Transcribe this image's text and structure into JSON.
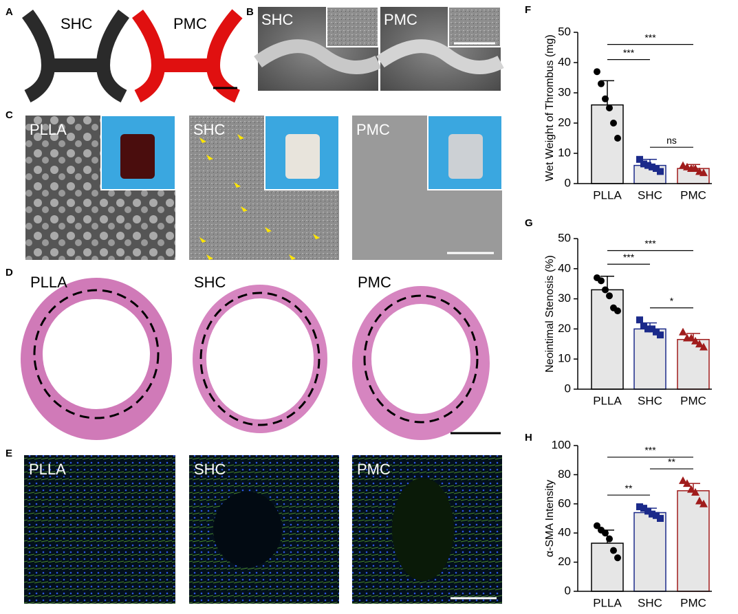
{
  "image_panels": [
    {
      "label": "A",
      "captions": [
        "SHC",
        "PMC"
      ]
    },
    {
      "label": "B",
      "captions": [
        "SHC",
        "PMC"
      ]
    },
    {
      "label": "C",
      "captions": [
        "PLLA",
        "SHC",
        "PMC"
      ]
    },
    {
      "label": "D",
      "captions": [
        "PLLA",
        "SHC",
        "PMC"
      ]
    },
    {
      "label": "E",
      "captions": [
        "PLLA",
        "SHC",
        "PMC"
      ]
    }
  ],
  "chart_data": [
    {
      "type": "bar",
      "panel": "F",
      "ylabel": "Wet Weight of Thrombus  (mg)",
      "categories": [
        "PLLA",
        "SHC",
        "PMC"
      ],
      "values": [
        26,
        6,
        5
      ],
      "errors": [
        8,
        2,
        1.3
      ],
      "points": [
        [
          37,
          33,
          28,
          25,
          20,
          15
        ],
        [
          8,
          6.5,
          6,
          5.5,
          5,
          4
        ],
        [
          6,
          5.5,
          5,
          5,
          4,
          3.6
        ]
      ],
      "ylim": [
        0,
        50
      ],
      "yticks": [
        0,
        10,
        20,
        30,
        40,
        50
      ],
      "significance": [
        {
          "from": 0,
          "to": 1,
          "label": "***"
        },
        {
          "from": 0,
          "to": 2,
          "label": "***"
        },
        {
          "from": 1,
          "to": 2,
          "label": "ns"
        }
      ],
      "colors": [
        "#000000",
        "#1b2a8a",
        "#a01c1c"
      ],
      "markers": [
        "circle",
        "square",
        "triangle"
      ],
      "bar_color": "#e6e6e6"
    },
    {
      "type": "bar",
      "panel": "G",
      "ylabel": "Neointimal Stenosis (%)",
      "categories": [
        "PLLA",
        "SHC",
        "PMC"
      ],
      "values": [
        33,
        20,
        16.5
      ],
      "errors": [
        4.5,
        2,
        2
      ],
      "points": [
        [
          37,
          36,
          33,
          31,
          27,
          26
        ],
        [
          23,
          21,
          20,
          20,
          19,
          18
        ],
        [
          19,
          17,
          17,
          16,
          15,
          14
        ]
      ],
      "ylim": [
        0,
        50
      ],
      "yticks": [
        0,
        10,
        20,
        30,
        40,
        50
      ],
      "significance": [
        {
          "from": 0,
          "to": 1,
          "label": "***"
        },
        {
          "from": 0,
          "to": 2,
          "label": "***"
        },
        {
          "from": 1,
          "to": 2,
          "label": "*"
        }
      ],
      "colors": [
        "#000000",
        "#1b2a8a",
        "#a01c1c"
      ],
      "markers": [
        "circle",
        "square",
        "triangle"
      ],
      "bar_color": "#e6e6e6"
    },
    {
      "type": "bar",
      "panel": "H",
      "ylabel": "α-SMA Intensity",
      "categories": [
        "PLLA",
        "SHC",
        "PMC"
      ],
      "values": [
        33,
        54,
        69
      ],
      "errors": [
        9,
        3,
        5
      ],
      "points": [
        [
          45,
          42,
          40,
          36,
          28,
          23
        ],
        [
          58,
          57,
          55,
          53,
          52,
          50
        ],
        [
          76,
          74,
          70,
          68,
          62,
          60
        ]
      ],
      "ylim": [
        0,
        100
      ],
      "yticks": [
        0,
        20,
        40,
        60,
        80,
        100
      ],
      "significance": [
        {
          "from": 0,
          "to": 1,
          "label": "**"
        },
        {
          "from": 0,
          "to": 2,
          "label": "***"
        },
        {
          "from": 1,
          "to": 2,
          "label": "**"
        }
      ],
      "colors": [
        "#000000",
        "#1b2a8a",
        "#a01c1c"
      ],
      "markers": [
        "circle",
        "square",
        "triangle"
      ],
      "bar_color": "#e6e6e6"
    }
  ]
}
